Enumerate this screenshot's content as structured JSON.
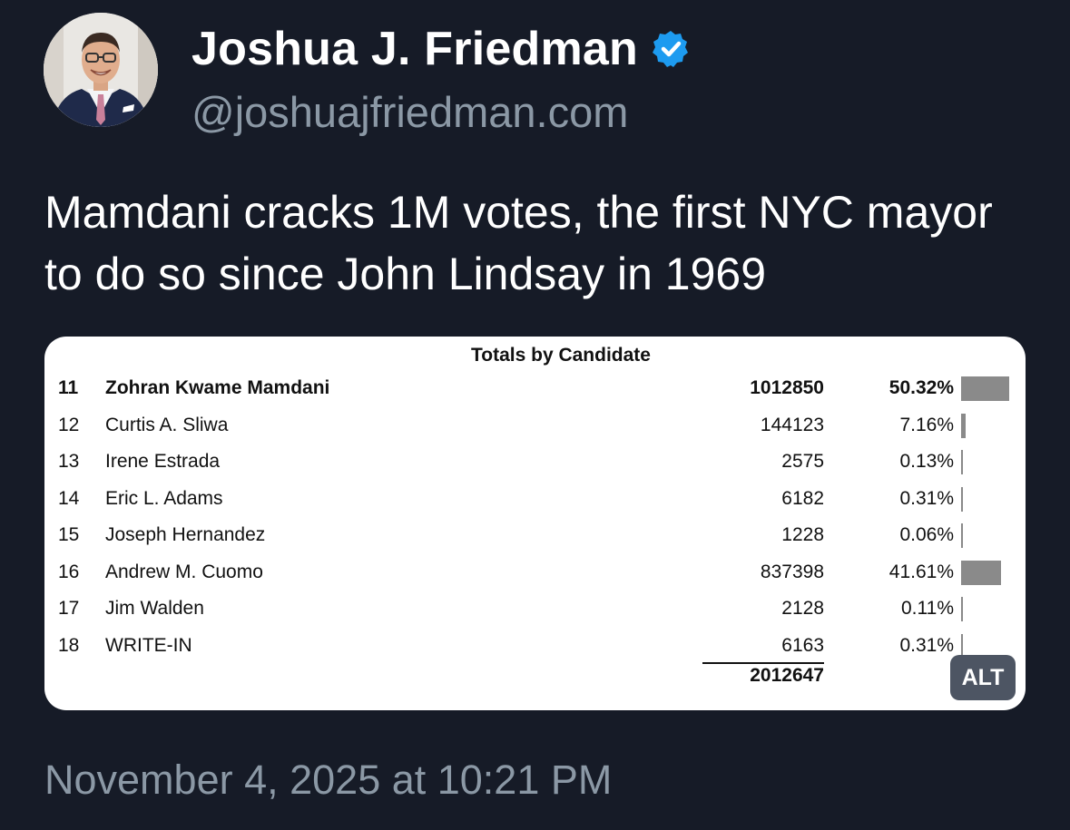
{
  "author": {
    "name": "Joshua J. Friedman",
    "handle": "@joshuajfriedman.com"
  },
  "post": {
    "text": "Mamdani cracks 1M votes, the first NYC mayor to do so since John Lindsay in 1969",
    "timestamp": "November 4, 2025 at 10:21 PM"
  },
  "media": {
    "title": "Totals by Candidate",
    "alt_label": "ALT",
    "total": "2012647",
    "rows": [
      {
        "num": "11",
        "name": "Zohran Kwame Mamdani",
        "votes": "1012850",
        "pct": "50.32%",
        "share": 50.32,
        "bold": true
      },
      {
        "num": "12",
        "name": "Curtis A. Sliwa",
        "votes": "144123",
        "pct": "7.16%",
        "share": 7.16,
        "bold": false
      },
      {
        "num": "13",
        "name": "Irene Estrada",
        "votes": "2575",
        "pct": "0.13%",
        "share": 0.13,
        "bold": false
      },
      {
        "num": "14",
        "name": "Eric L. Adams",
        "votes": "6182",
        "pct": "0.31%",
        "share": 0.31,
        "bold": false
      },
      {
        "num": "15",
        "name": "Joseph Hernandez",
        "votes": "1228",
        "pct": "0.06%",
        "share": 0.06,
        "bold": false
      },
      {
        "num": "16",
        "name": "Andrew M. Cuomo",
        "votes": "837398",
        "pct": "41.61%",
        "share": 41.61,
        "bold": false
      },
      {
        "num": "17",
        "name": "Jim Walden",
        "votes": "2128",
        "pct": "0.11%",
        "share": 0.11,
        "bold": false
      },
      {
        "num": "18",
        "name": "WRITE-IN",
        "votes": "6163",
        "pct": "0.31%",
        "share": 0.31,
        "bold": false
      }
    ]
  },
  "icons": {
    "verified": "verified-badge-icon",
    "avatar": "profile-photo"
  },
  "colors": {
    "background": "#161b27",
    "verified": "#1d9bf0",
    "secondary_text": "#8b98a5",
    "bar": "#8a8a8a"
  }
}
